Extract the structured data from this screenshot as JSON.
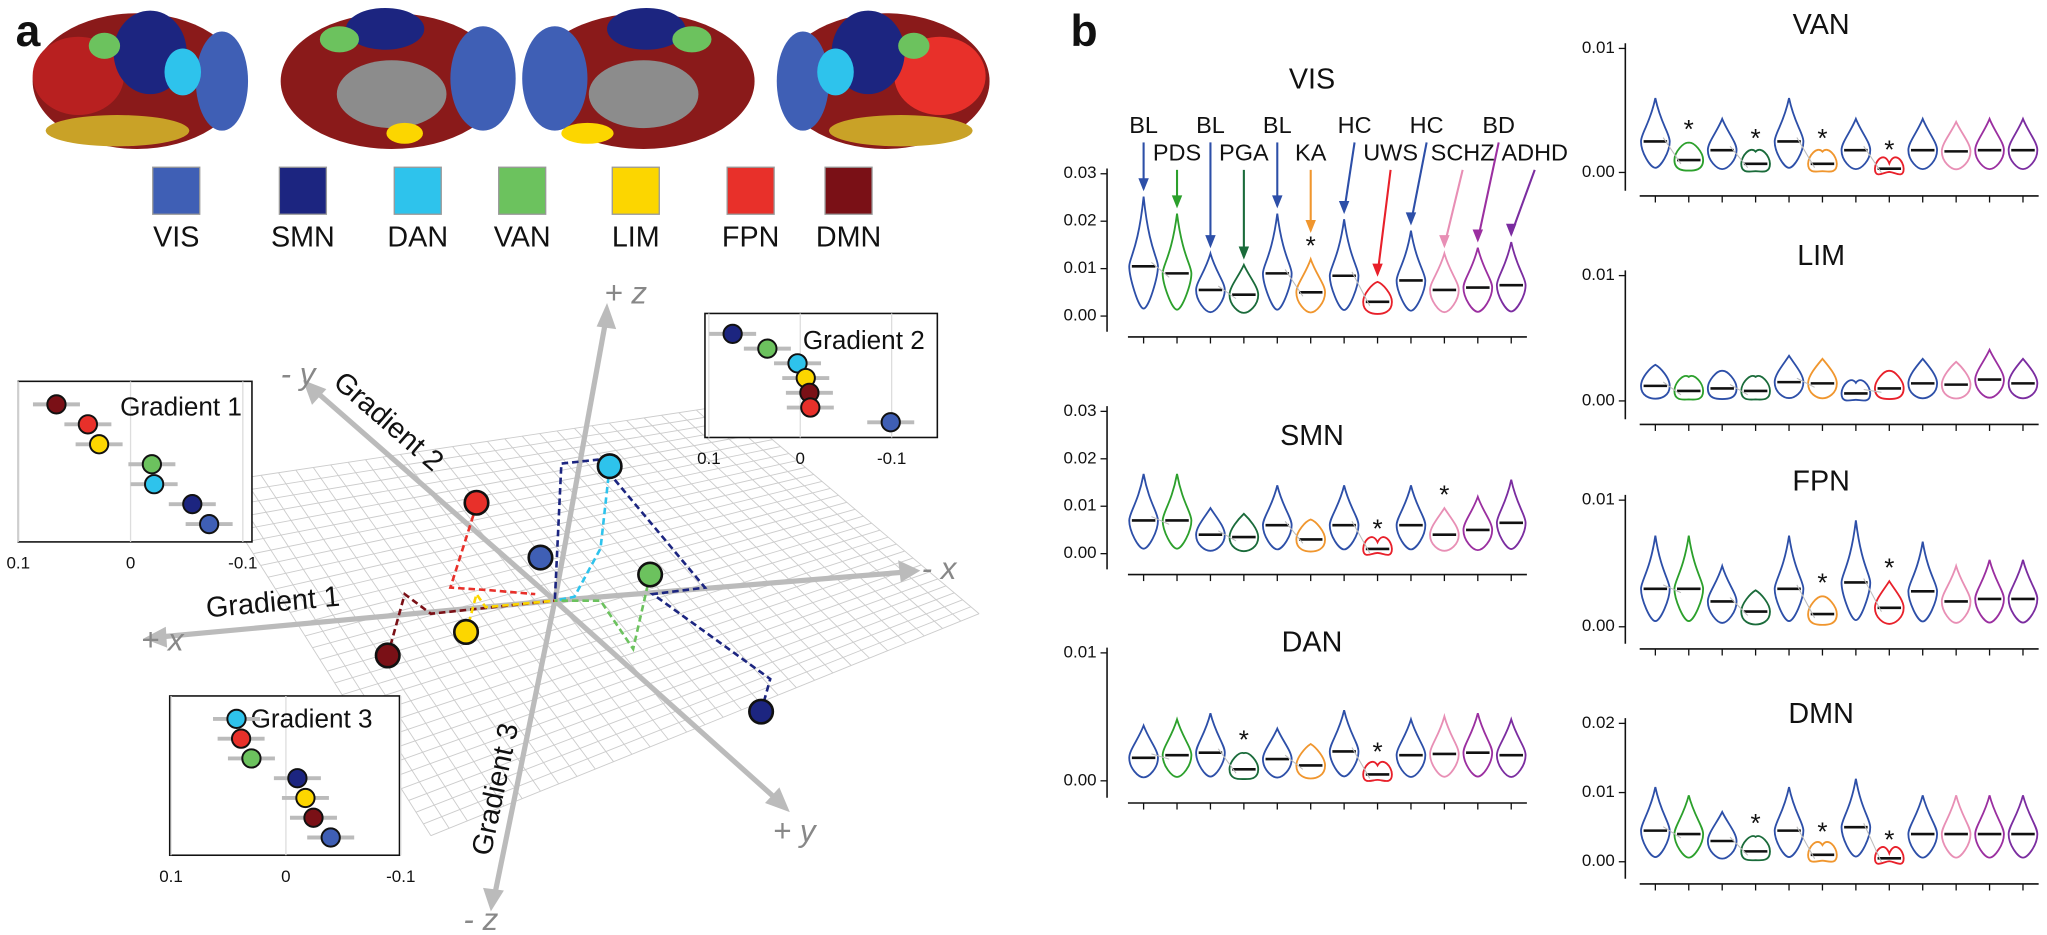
{
  "panel_a": {
    "label": "a",
    "networks": [
      {
        "name": "VIS",
        "color": "#3f5fb5"
      },
      {
        "name": "SMN",
        "color": "#1c2580"
      },
      {
        "name": "DAN",
        "color": "#2ec3ec"
      },
      {
        "name": "VAN",
        "color": "#6cc25e"
      },
      {
        "name": "LIM",
        "color": "#fcd600"
      },
      {
        "name": "FPN",
        "color": "#e8302a"
      },
      {
        "name": "DMN",
        "color": "#7a1016"
      }
    ],
    "axes": {
      "plus_z": "+ z",
      "minus_z": "- z",
      "plus_x": "+ x",
      "minus_x": "- x",
      "plus_y": "+ y",
      "minus_y": "- y",
      "gradient1": "Gradient 1",
      "gradient2": "Gradient 2",
      "gradient3": "Gradient 3"
    },
    "insets": [
      {
        "title": "Gradient 1",
        "xlim": [
          0.1,
          -0.1
        ],
        "xticks": [
          0.1,
          0,
          -0.1
        ],
        "rows": [
          {
            "color": "#7a1016",
            "value": 0.066
          },
          {
            "color": "#e8302a",
            "value": 0.038
          },
          {
            "color": "#fcd600",
            "value": 0.028
          },
          {
            "color": "#6cc25e",
            "value": -0.019
          },
          {
            "color": "#2ec3ec",
            "value": -0.021
          },
          {
            "color": "#1c2580",
            "value": -0.055
          },
          {
            "color": "#3f5fb5",
            "value": -0.07
          }
        ]
      },
      {
        "title": "Gradient 2",
        "xlim": [
          0.1,
          -0.1
        ],
        "xticks": [
          0.1,
          0,
          -0.1
        ],
        "rows": [
          {
            "color": "#1c2580",
            "value": 0.074
          },
          {
            "color": "#6cc25e",
            "value": 0.036
          },
          {
            "color": "#2ec3ec",
            "value": 0.003
          },
          {
            "color": "#fcd600",
            "value": -0.006
          },
          {
            "color": "#7a1016",
            "value": -0.01
          },
          {
            "color": "#e8302a",
            "value": -0.011
          },
          {
            "color": "#3f5fb5",
            "value": -0.099
          }
        ]
      },
      {
        "title": "Gradient 3",
        "xlim": [
          0.1,
          -0.1
        ],
        "xticks": [
          0.1,
          0,
          -0.1
        ],
        "rows": [
          {
            "color": "#2ec3ec",
            "value": 0.043
          },
          {
            "color": "#e8302a",
            "value": 0.039
          },
          {
            "color": "#6cc25e",
            "value": 0.03
          },
          {
            "color": "#1c2580",
            "value": -0.01
          },
          {
            "color": "#fcd600",
            "value": -0.017
          },
          {
            "color": "#7a1016",
            "value": -0.024
          },
          {
            "color": "#3f5fb5",
            "value": -0.039
          }
        ]
      }
    ]
  },
  "panel_b": {
    "label": "b",
    "groups": [
      "BL",
      "PDS",
      "BL",
      "PGA",
      "BL",
      "KA",
      "HC",
      "UWS",
      "HC",
      "SCHZ",
      "BD",
      "ADHD"
    ],
    "group_colors": [
      "#2d4fa8",
      "#2ca02c",
      "#2d4fa8",
      "#1a6b3a",
      "#2d4fa8",
      "#f0962e",
      "#2d4fa8",
      "#e8202a",
      "#2d4fa8",
      "#e88fb5",
      "#9b2fa0",
      "#7b2da0"
    ],
    "significance_label": "*",
    "panels": [
      {
        "title": "VIS",
        "ylim": [
          0,
          0.03
        ],
        "yticks": [
          {
            "value": 0,
            "label": "0.00"
          },
          {
            "value": 0.01,
            "label": "0.01"
          },
          {
            "value": 0.02,
            "label": "0.02"
          },
          {
            "value": 0.03,
            "label": "0.03"
          }
        ],
        "medians": [
          0.0105,
          0.009,
          0.0055,
          0.0045,
          0.009,
          0.005,
          0.0085,
          0.003,
          0.0075,
          0.0055,
          0.006,
          0.0065
        ],
        "significant": [
          false,
          false,
          false,
          false,
          false,
          true,
          false,
          false,
          false,
          false,
          false,
          false
        ]
      },
      {
        "title": "SMN",
        "ylim": [
          0,
          0.03
        ],
        "yticks": [
          {
            "value": 0,
            "label": "0.00"
          },
          {
            "value": 0.01,
            "label": "0.01"
          },
          {
            "value": 0.02,
            "label": "0.02"
          },
          {
            "value": 0.03,
            "label": "0.03"
          }
        ],
        "medians": [
          0.007,
          0.007,
          0.004,
          0.0035,
          0.006,
          0.003,
          0.006,
          0.001,
          0.006,
          0.004,
          0.005,
          0.0065
        ],
        "significant": [
          false,
          false,
          false,
          false,
          false,
          false,
          false,
          true,
          false,
          true,
          false,
          false
        ]
      },
      {
        "title": "DAN",
        "ylim": [
          0,
          0.01
        ],
        "yticks": [
          {
            "value": 0,
            "label": "0.00"
          },
          {
            "value": 0.01,
            "label": "0.01"
          }
        ],
        "medians": [
          0.0018,
          0.002,
          0.0022,
          0.0009,
          0.0017,
          0.0012,
          0.0023,
          0.0005,
          0.002,
          0.0021,
          0.0022,
          0.002
        ],
        "significant": [
          false,
          false,
          false,
          true,
          false,
          false,
          false,
          true,
          false,
          false,
          false,
          false
        ]
      },
      {
        "title": "VAN",
        "ylim": [
          0,
          0.01
        ],
        "yticks": [
          {
            "value": 0,
            "label": "0.00"
          },
          {
            "value": 0.01,
            "label": "0.01"
          }
        ],
        "medians": [
          0.0025,
          0.001,
          0.0018,
          0.0007,
          0.0025,
          0.0007,
          0.0018,
          0.0003,
          0.0018,
          0.0017,
          0.0018,
          0.0018
        ],
        "significant": [
          false,
          true,
          false,
          true,
          false,
          true,
          false,
          true,
          false,
          false,
          false,
          false
        ]
      },
      {
        "title": "LIM",
        "ylim": [
          0,
          0.01
        ],
        "yticks": [
          {
            "value": 0,
            "label": "0.00"
          },
          {
            "value": 0.01,
            "label": "0.01"
          }
        ],
        "medians": [
          0.0012,
          0.0008,
          0.001,
          0.0008,
          0.0015,
          0.0014,
          0.0006,
          0.001,
          0.0014,
          0.0013,
          0.0017,
          0.0014
        ],
        "significant": [
          false,
          false,
          false,
          false,
          false,
          false,
          false,
          false,
          false,
          false,
          false,
          false
        ]
      },
      {
        "title": "FPN",
        "ylim": [
          0,
          0.01
        ],
        "yticks": [
          {
            "value": 0,
            "label": "0.00"
          },
          {
            "value": 0.01,
            "label": "0.01"
          }
        ],
        "medians": [
          0.003,
          0.003,
          0.002,
          0.0012,
          0.003,
          0.001,
          0.0035,
          0.0015,
          0.0028,
          0.002,
          0.0022,
          0.0022
        ],
        "significant": [
          false,
          false,
          false,
          false,
          false,
          true,
          false,
          true,
          false,
          false,
          false,
          false
        ]
      },
      {
        "title": "DMN",
        "ylim": [
          0,
          0.02
        ],
        "yticks": [
          {
            "value": 0,
            "label": "0.00"
          },
          {
            "value": 0.01,
            "label": "0.01"
          },
          {
            "value": 0.02,
            "label": "0.02"
          }
        ],
        "medians": [
          0.0045,
          0.004,
          0.003,
          0.0015,
          0.0045,
          0.001,
          0.005,
          0.0005,
          0.004,
          0.004,
          0.004,
          0.004
        ],
        "significant": [
          false,
          false,
          false,
          true,
          false,
          true,
          false,
          true,
          false,
          false,
          false,
          false
        ]
      }
    ]
  }
}
